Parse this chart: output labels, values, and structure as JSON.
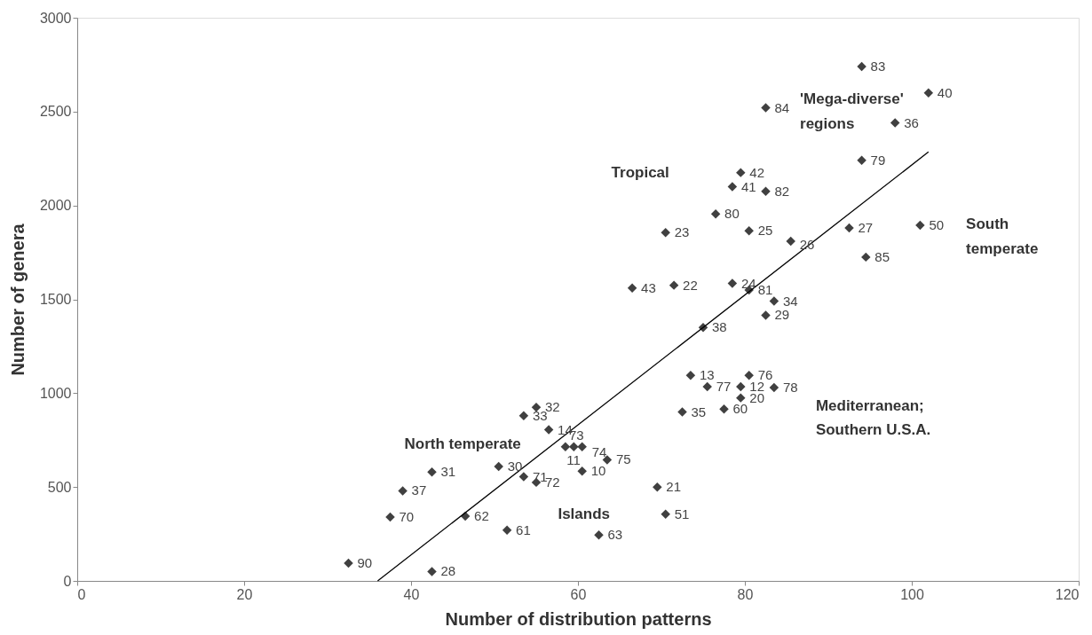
{
  "chart_data": {
    "type": "scatter",
    "xlabel": "Number of distribution patterns",
    "ylabel": "Number of genera",
    "xlim": [
      0,
      120
    ],
    "ylim": [
      0,
      3000
    ],
    "xticks": [
      0,
      20,
      40,
      60,
      80,
      100,
      120
    ],
    "yticks": [
      0,
      500,
      1000,
      1500,
      2000,
      2500,
      3000
    ],
    "grid": false,
    "marker": "diamond",
    "series": [
      {
        "type": "scatter",
        "color": "#404040",
        "x": [
          94,
          102,
          82.5,
          98,
          94,
          79.5,
          78.5,
          82.5,
          76.5,
          70.5,
          80.5,
          85.5,
          92.5,
          101,
          94.5,
          66.5,
          71.5,
          78.5,
          80.5,
          83.5,
          82.5,
          75,
          73.5,
          80.5,
          75.5,
          79.5,
          83.5,
          79.5,
          72.5,
          77.5,
          55,
          53.5,
          56.5,
          58.5,
          59.5,
          60.5,
          63.5,
          60.5,
          50.5,
          53.5,
          55,
          42.5,
          39,
          37.5,
          46.5,
          51.5,
          62.5,
          69.5,
          70.5,
          32.5,
          42.5
        ],
        "values": [
          2740,
          2600,
          2520,
          2440,
          2240,
          2175,
          2100,
          2075,
          1955,
          1855,
          1865,
          1810,
          1880,
          1895,
          1725,
          1560,
          1575,
          1585,
          1550,
          1490,
          1415,
          1350,
          1095,
          1095,
          1035,
          1035,
          1030,
          975,
          900,
          915,
          925,
          880,
          805,
          715,
          715,
          715,
          645,
          585,
          610,
          555,
          525,
          580,
          480,
          340,
          345,
          270,
          245,
          500,
          355,
          95,
          50
        ]
      },
      {
        "type": "line",
        "color": "#000000",
        "line_style": "solid",
        "marker": "none",
        "x": [
          36,
          102
        ],
        "values": [
          0,
          2285
        ]
      }
    ],
    "annotations": [
      {
        "text": "83",
        "x": 94,
        "y": 2740
      },
      {
        "text": "40",
        "x": 102,
        "y": 2600
      },
      {
        "text": "84",
        "x": 82.5,
        "y": 2520
      },
      {
        "text": "36",
        "x": 98,
        "y": 2440
      },
      {
        "text": "79",
        "x": 94,
        "y": 2240
      },
      {
        "text": "42",
        "x": 79.5,
        "y": 2175
      },
      {
        "text": "41",
        "x": 78.5,
        "y": 2100
      },
      {
        "text": "82",
        "x": 82.5,
        "y": 2075
      },
      {
        "text": "80",
        "x": 76.5,
        "y": 1955
      },
      {
        "text": "23",
        "x": 70.5,
        "y": 1855
      },
      {
        "text": "25",
        "x": 80.5,
        "y": 1865
      },
      {
        "text": "26",
        "x": 85.5,
        "y": 1810
      },
      {
        "text": "27",
        "x": 92.5,
        "y": 1880
      },
      {
        "text": "50",
        "x": 101,
        "y": 1895
      },
      {
        "text": "85",
        "x": 94.5,
        "y": 1725
      },
      {
        "text": "43",
        "x": 66.5,
        "y": 1560
      },
      {
        "text": "22",
        "x": 71.5,
        "y": 1575
      },
      {
        "text": "24",
        "x": 78.5,
        "y": 1585
      },
      {
        "text": "81",
        "x": 80.5,
        "y": 1550
      },
      {
        "text": "34",
        "x": 83.5,
        "y": 1490
      },
      {
        "text": "29",
        "x": 82.5,
        "y": 1415
      },
      {
        "text": "38",
        "x": 75,
        "y": 1350
      },
      {
        "text": "13",
        "x": 73.5,
        "y": 1095
      },
      {
        "text": "76",
        "x": 80.5,
        "y": 1095
      },
      {
        "text": "77",
        "x": 75.5,
        "y": 1035
      },
      {
        "text": "12",
        "x": 79.5,
        "y": 1035
      },
      {
        "text": "78",
        "x": 83.5,
        "y": 1030
      },
      {
        "text": "20",
        "x": 79.5,
        "y": 975
      },
      {
        "text": "35",
        "x": 72.5,
        "y": 900
      },
      {
        "text": "60",
        "x": 77.5,
        "y": 915
      },
      {
        "text": "32",
        "x": 55,
        "y": 925
      },
      {
        "text": "33",
        "x": 53.5,
        "y": 880
      },
      {
        "text": "14",
        "x": 56.5,
        "y": 805
      },
      {
        "text": "73",
        "x": 58.5,
        "y": 715
      },
      {
        "text": "11",
        "x": 59.5,
        "y": 715
      },
      {
        "text": "74",
        "x": 60.5,
        "y": 715
      },
      {
        "text": "75",
        "x": 63.5,
        "y": 645
      },
      {
        "text": "10",
        "x": 60.5,
        "y": 585
      },
      {
        "text": "30",
        "x": 50.5,
        "y": 610
      },
      {
        "text": "71",
        "x": 53.5,
        "y": 555
      },
      {
        "text": "72",
        "x": 55,
        "y": 525
      },
      {
        "text": "31",
        "x": 42.5,
        "y": 580
      },
      {
        "text": "37",
        "x": 39,
        "y": 480
      },
      {
        "text": "70",
        "x": 37.5,
        "y": 340
      },
      {
        "text": "62",
        "x": 46.5,
        "y": 345
      },
      {
        "text": "61",
        "x": 51.5,
        "y": 270
      },
      {
        "text": "63",
        "x": 62.5,
        "y": 245
      },
      {
        "text": "21",
        "x": 69.5,
        "y": 500
      },
      {
        "text": "51",
        "x": 70.5,
        "y": 355
      },
      {
        "text": "90",
        "x": 32.5,
        "y": 95
      },
      {
        "text": "28",
        "x": 42.5,
        "y": 50
      },
      "'Mega-diverse' regions",
      "Tropical",
      "South temperate",
      "Mediterranean; Southern U.S.A.",
      "North temperate",
      "Islands"
    ]
  }
}
